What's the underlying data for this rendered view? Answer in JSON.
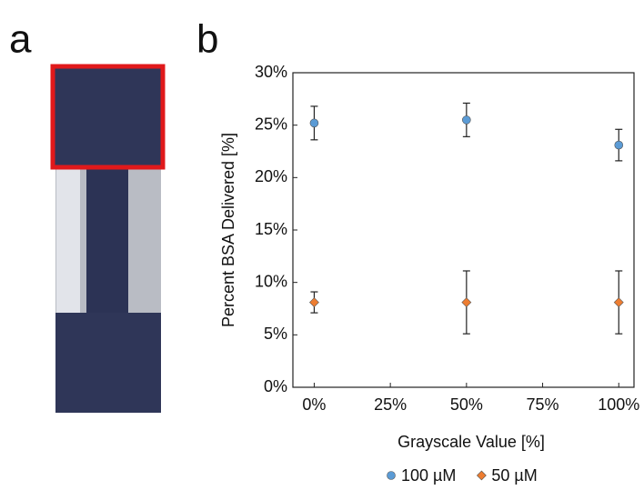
{
  "panel_labels": [
    "a",
    "b"
  ],
  "chart_data": {
    "type": "scatter",
    "xlabel": "Grayscale Value [%]",
    "ylabel": "Percent BSA Delivered [%]",
    "x": [
      0,
      50,
      100
    ],
    "series": [
      {
        "name": "100 µM",
        "color": "#5b9bd5",
        "marker": "circle",
        "values": [
          25.2,
          25.5,
          23.1
        ],
        "errors": [
          1.6,
          1.6,
          1.5
        ]
      },
      {
        "name": "50 µM",
        "color": "#ed7d31",
        "marker": "diamond",
        "values": [
          8.1,
          8.1,
          8.1
        ],
        "errors": [
          1.0,
          3.0,
          3.0
        ]
      }
    ],
    "xlim": [
      -7,
      105
    ],
    "xticks": [
      {
        "value": 0,
        "label": "0%"
      },
      {
        "value": 25,
        "label": "25%"
      },
      {
        "value": 50,
        "label": "50%"
      },
      {
        "value": 75,
        "label": "75%"
      },
      {
        "value": 100,
        "label": "100%"
      }
    ],
    "ylim": [
      0,
      30
    ],
    "yticks": [
      {
        "value": 0,
        "label": "0%"
      },
      {
        "value": 5,
        "label": "5%"
      },
      {
        "value": 10,
        "label": "10%"
      },
      {
        "value": 15,
        "label": "15%"
      },
      {
        "value": 20,
        "label": "20%"
      },
      {
        "value": 25,
        "label": "25%"
      },
      {
        "value": 30,
        "label": "30%"
      }
    ],
    "legend": "bottom",
    "grid": false
  }
}
